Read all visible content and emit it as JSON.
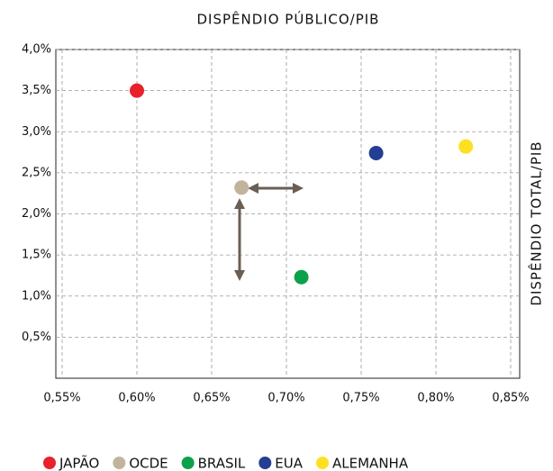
{
  "chart_data": {
    "type": "scatter",
    "title": "DISPÊNDIO PÚBLICO/PIB",
    "y_label": "DISPÊNDIO TOTAL/PIB",
    "series": [
      {
        "name": "JAPÃO",
        "color": "#e8212b",
        "x": [
          0.6
        ],
        "values": [
          3.5
        ]
      },
      {
        "name": "OCDE",
        "color": "#c2b49c",
        "x": [
          0.67
        ],
        "values": [
          2.32
        ]
      },
      {
        "name": "BRASIL",
        "color": "#0ca04a",
        "x": [
          0.71
        ],
        "values": [
          1.23
        ]
      },
      {
        "name": "EUA",
        "color": "#233e93",
        "x": [
          0.76
        ],
        "values": [
          2.74
        ]
      },
      {
        "name": "ALEMANHA",
        "color": "#fde021",
        "x": [
          0.82
        ],
        "values": [
          2.82
        ]
      }
    ],
    "xlim": [
      0.55,
      0.85
    ],
    "xticks": [
      {
        "value": 0.55,
        "label": "0,55%"
      },
      {
        "value": 0.6,
        "label": "0,60%"
      },
      {
        "value": 0.65,
        "label": "0,65%"
      },
      {
        "value": 0.7,
        "label": "0,70%"
      },
      {
        "value": 0.75,
        "label": "0,75%"
      },
      {
        "value": 0.8,
        "label": "0,80%"
      },
      {
        "value": 0.85,
        "label": "0,85%"
      }
    ],
    "ylim": [
      0,
      4.0
    ],
    "yticks": [
      {
        "value": 0.5,
        "label": "0,5%"
      },
      {
        "value": 1.0,
        "label": "1,0%"
      },
      {
        "value": 1.5,
        "label": "1,5%"
      },
      {
        "value": 2.0,
        "label": "2,0%"
      },
      {
        "value": 2.5,
        "label": "2,5%"
      },
      {
        "value": 3.0,
        "label": "3,0%"
      },
      {
        "value": 3.5,
        "label": "3,5%"
      },
      {
        "value": 4.0,
        "label": "4,0%"
      }
    ],
    "grid": true,
    "legend": "bottom"
  }
}
